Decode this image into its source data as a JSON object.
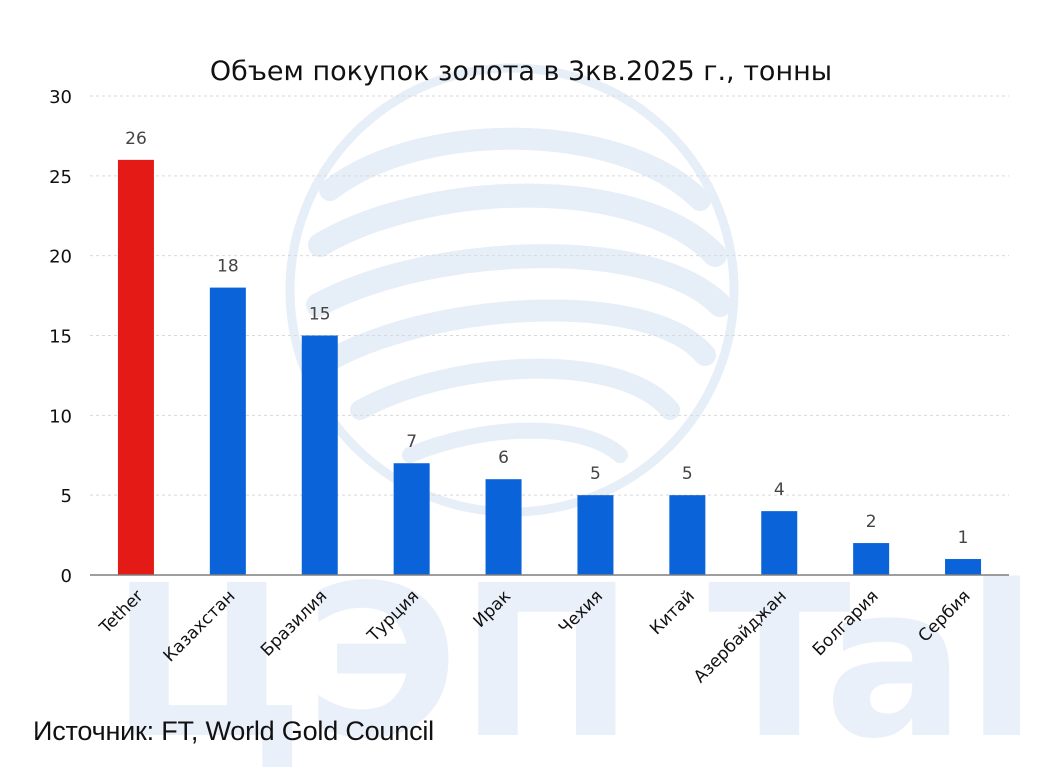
{
  "chart_data": {
    "type": "bar",
    "title": "Объем покупок золота в 3кв.2025 г., тонны",
    "categories": [
      "Tether",
      "Казахстан",
      "Бразилия",
      "Турция",
      "Ирак",
      "Чехия",
      "Китай",
      "Азербайджан",
      "Болгария",
      "Сербия"
    ],
    "values": [
      26,
      18,
      15,
      7,
      6,
      5,
      5,
      4,
      2,
      1
    ],
    "ylim": [
      0,
      30
    ],
    "yticks": [
      0,
      5,
      10,
      15,
      20,
      25,
      30
    ],
    "grid": true,
    "highlight_index": 0,
    "colors": {
      "highlight": "#e41a17",
      "bar": "#0a63d8",
      "grid": "#d9d9d9",
      "axis": "#7f7f7f"
    },
    "watermark": "ЦЭП Talks"
  },
  "source_text": "Источник: FT, World Gold Council"
}
